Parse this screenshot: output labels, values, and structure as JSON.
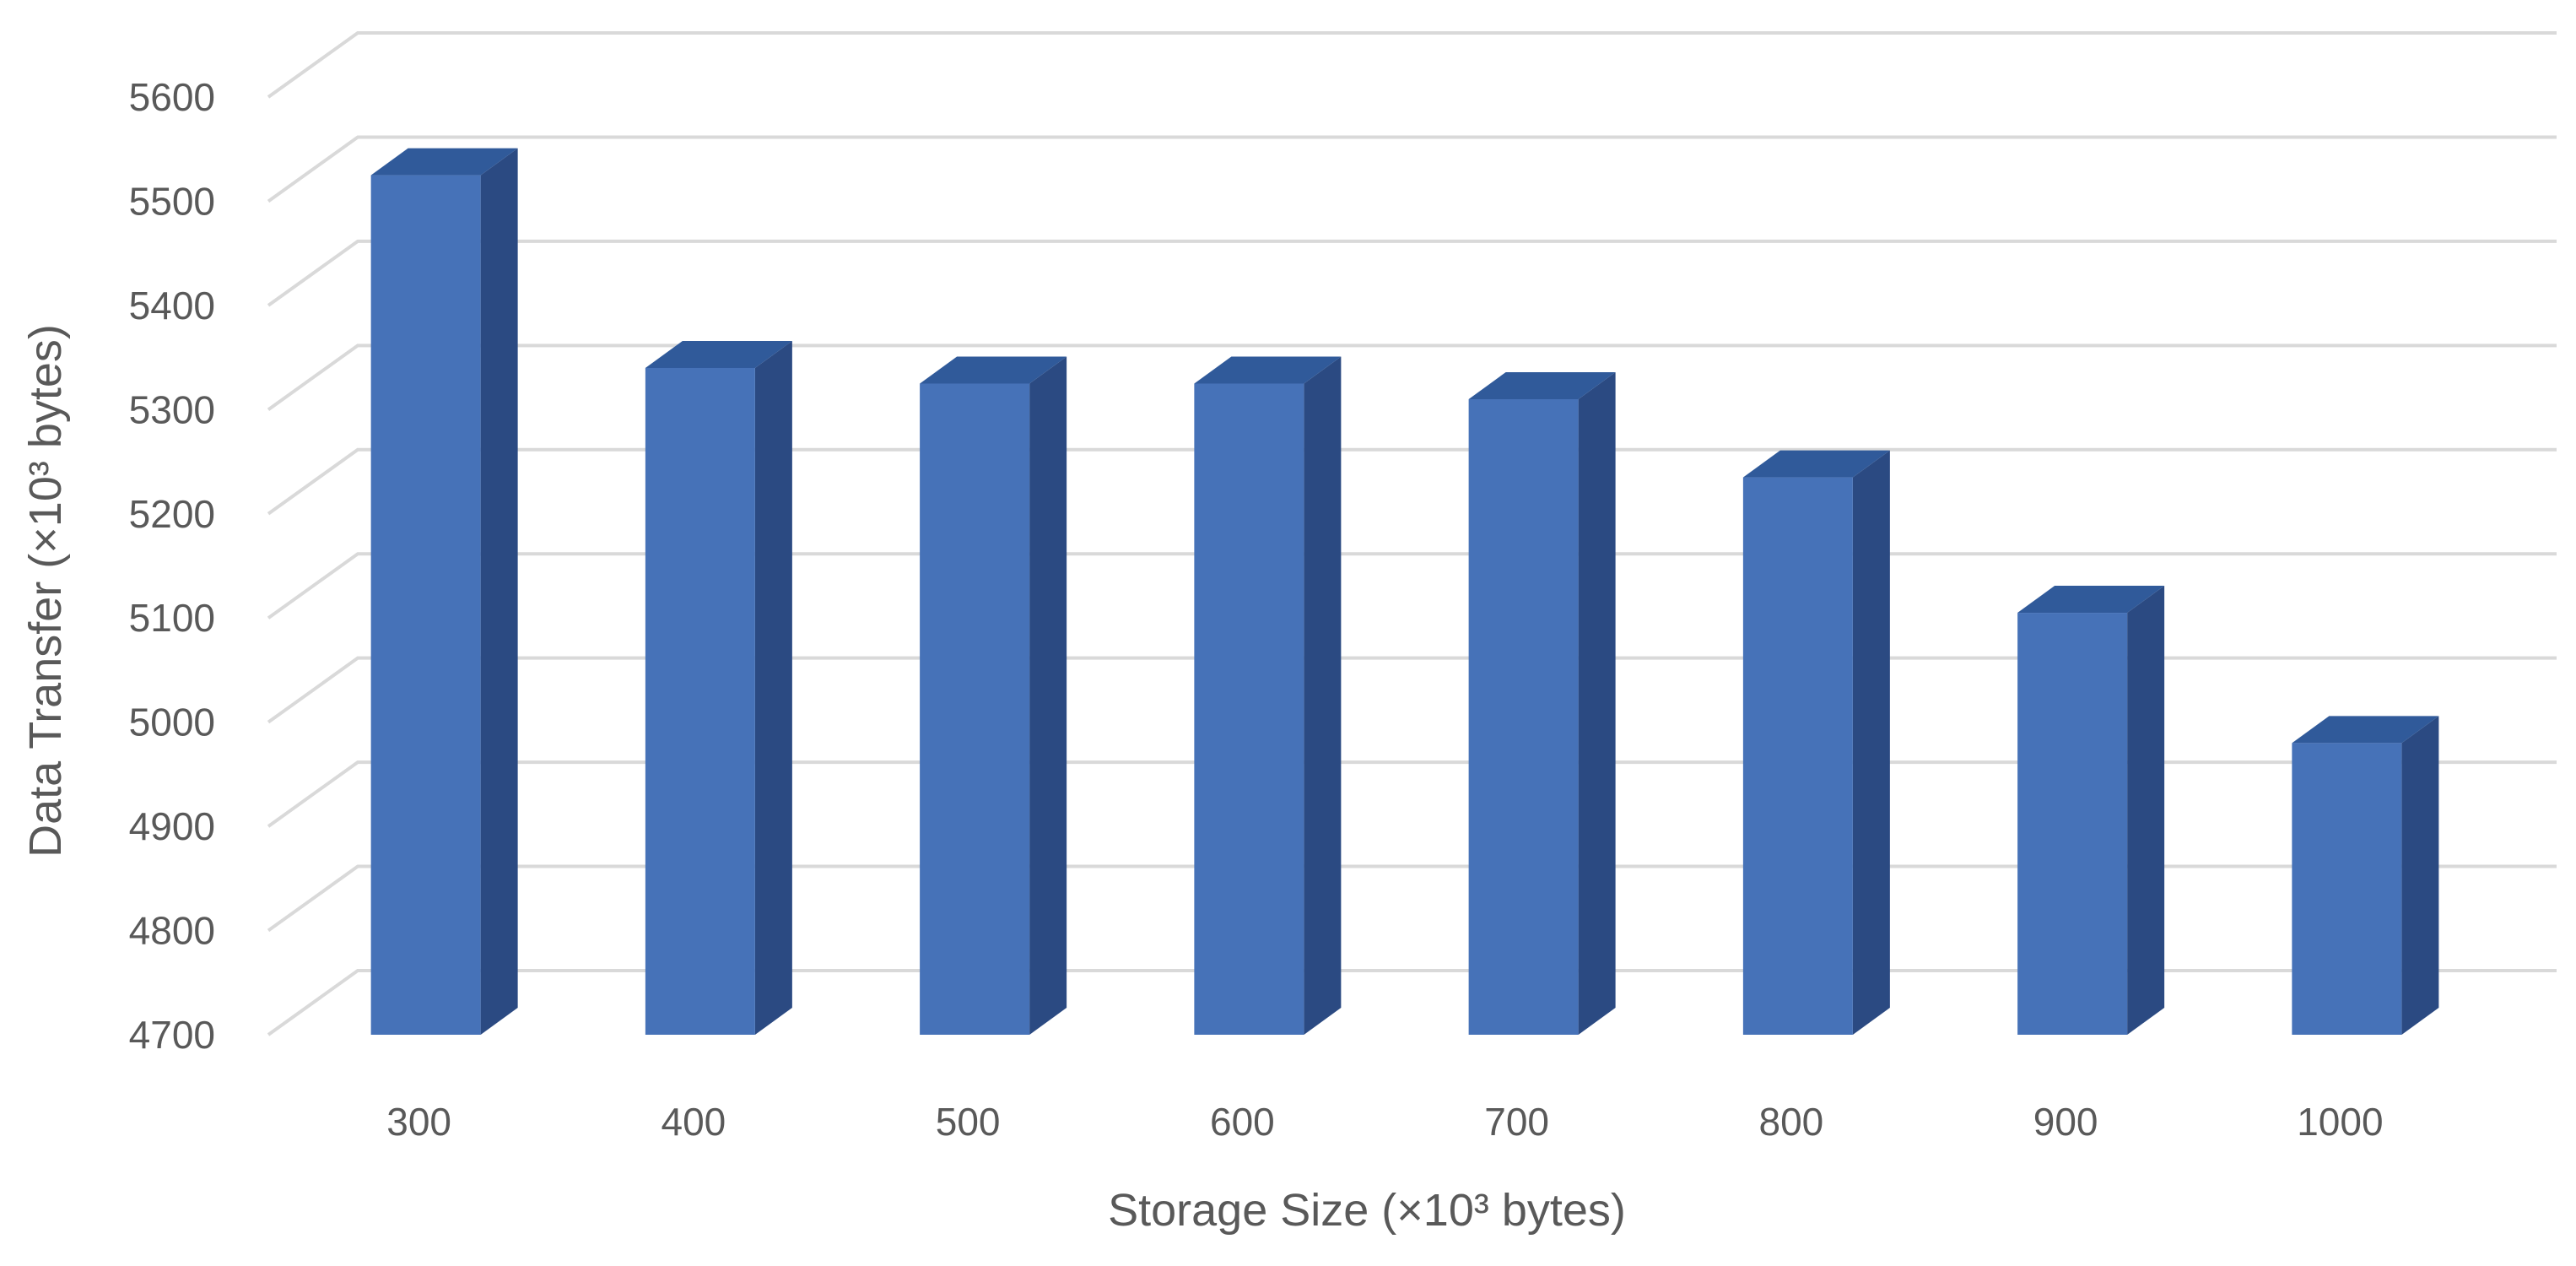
{
  "chart_data": {
    "type": "bar",
    "style": "3d-column",
    "categories": [
      "300",
      "400",
      "500",
      "600",
      "700",
      "800",
      "900",
      "1000"
    ],
    "series": [
      {
        "values": [
          5525,
          5340,
          5325,
          5325,
          5310,
          5235,
          5105,
          4980
        ]
      }
    ],
    "xlabel": "Storage Size (×10³ bytes)",
    "ylabel": "Data Transfer (×10³ bytes)",
    "ylim": [
      4700,
      5600
    ],
    "yticks": [
      "4700",
      "4800",
      "4900",
      "5000",
      "5100",
      "5200",
      "5300",
      "5400",
      "5500",
      "5600"
    ],
    "grid": true,
    "legend": "none",
    "colors": {
      "bar_front": "#4672B8",
      "bar_side": "#2B4A82",
      "bar_top": "#305A9A",
      "grid": "#D9D9D9",
      "text": "#595959"
    }
  }
}
